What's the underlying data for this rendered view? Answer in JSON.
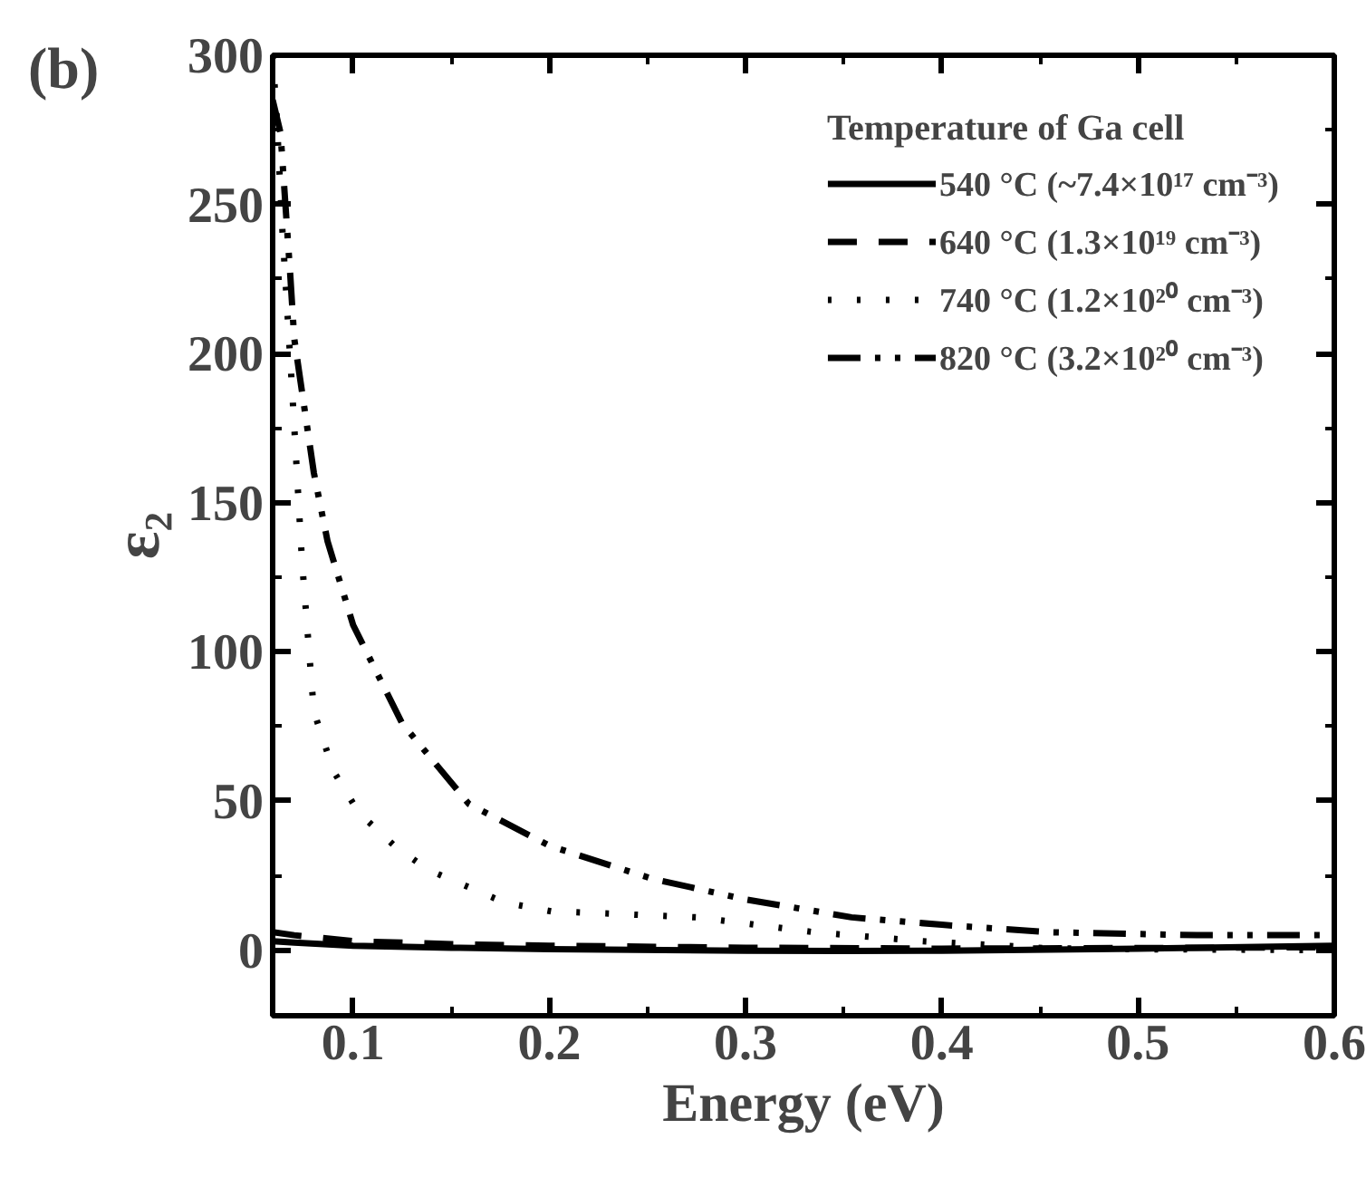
{
  "chart_data": {
    "type": "line",
    "xlabel": "Energy (eV)",
    "ylabel": "ε₂",
    "legend_title": "Temperature of Ga cell",
    "legend": "top right",
    "annotations": [
      "(b)"
    ],
    "xlim": [
      0.059,
      0.6
    ],
    "xticks": [
      0.1,
      0.2,
      0.3,
      0.4,
      0.5,
      0.6
    ],
    "ylim": [
      -22,
      300
    ],
    "yticks": [
      0,
      50,
      100,
      150,
      200,
      250,
      300
    ],
    "grid": false,
    "series": [
      {
        "name": "540 °C (~7.4×10¹⁷ cm⁻³)",
        "color": "#000000",
        "line_style": "solid",
        "x": [
          0.059,
          0.07,
          0.1,
          0.15,
          0.2,
          0.3,
          0.35,
          0.4,
          0.5,
          0.6
        ],
        "values": [
          3,
          2.5,
          1.5,
          0.8,
          0.3,
          -0.2,
          -0.3,
          -0.2,
          0.5,
          1.5
        ]
      },
      {
        "name": "640 °C (1.3×10¹⁹ cm⁻³)",
        "color": "#000000",
        "line_style": "dashed",
        "x": [
          0.059,
          0.07,
          0.1,
          0.15,
          0.2,
          0.3,
          0.4,
          0.5,
          0.6
        ],
        "values": [
          6,
          5,
          3,
          2,
          1.5,
          0.8,
          0.5,
          0.7,
          1
        ]
      },
      {
        "name": "740 °C (1.2×10²⁰ cm⁻³)",
        "color": "#000000",
        "line_style": "dotted",
        "x": [
          0.059,
          0.061,
          0.064,
          0.069,
          0.074,
          0.08,
          0.09,
          0.103,
          0.121,
          0.138,
          0.177,
          0.201,
          0.24,
          0.275,
          0.335,
          0.39,
          0.455,
          0.5,
          0.6
        ],
        "values": [
          300,
          280,
          241,
          187,
          130,
          80,
          60,
          46,
          35,
          27,
          16,
          13,
          12,
          11,
          6,
          3,
          0.6,
          0.3,
          0
        ]
      },
      {
        "name": "820 °C (3.2×10²⁰ cm⁻³)",
        "color": "#000000",
        "line_style": "dashdotdot",
        "x": [
          0.059,
          0.063,
          0.068,
          0.07,
          0.08,
          0.087,
          0.1,
          0.125,
          0.159,
          0.2,
          0.252,
          0.3,
          0.354,
          0.4,
          0.455,
          0.53,
          0.6
        ],
        "values": [
          285,
          274,
          226,
          205,
          160,
          137,
          109,
          76,
          49,
          35,
          24,
          17,
          11,
          8.5,
          6,
          5,
          5
        ]
      }
    ]
  }
}
